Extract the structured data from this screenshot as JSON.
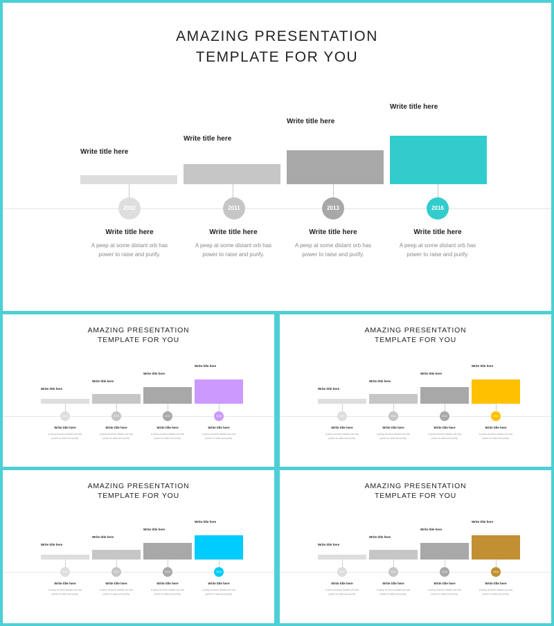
{
  "title_line1": "AMAZING PRESENTATION",
  "title_line2": "TEMPLATE FOR YOU",
  "neutral_colors": [
    "#dedede",
    "#c6c6c6",
    "#a8a8a8"
  ],
  "steps": [
    {
      "step_title": "Write title here",
      "year": "2002",
      "item_title": "Write title here",
      "desc_line1": "A peep at some distant orb has",
      "desc_line2": "power to raise and purify."
    },
    {
      "step_title": "Write title here",
      "year": "2011",
      "item_title": "Write title here",
      "desc_line1": "A peep at some distant orb has",
      "desc_line2": "power to raise and purify."
    },
    {
      "step_title": "Write title here",
      "year": "2013",
      "item_title": "Write title here",
      "desc_line1": "A peep at some distant orb has",
      "desc_line2": "power to raise and purify."
    },
    {
      "step_title": "Write title here",
      "year": "2016",
      "item_title": "Write title here",
      "desc_line1": "A peep at some distant orb has",
      "desc_line2": "power to raise and purify."
    }
  ],
  "slides": [
    {
      "accent": "#33cccc"
    },
    {
      "accent": "#cc99ff"
    },
    {
      "accent": "#ffc000"
    },
    {
      "accent": "#00ccff"
    },
    {
      "accent": "#c19033"
    }
  ]
}
